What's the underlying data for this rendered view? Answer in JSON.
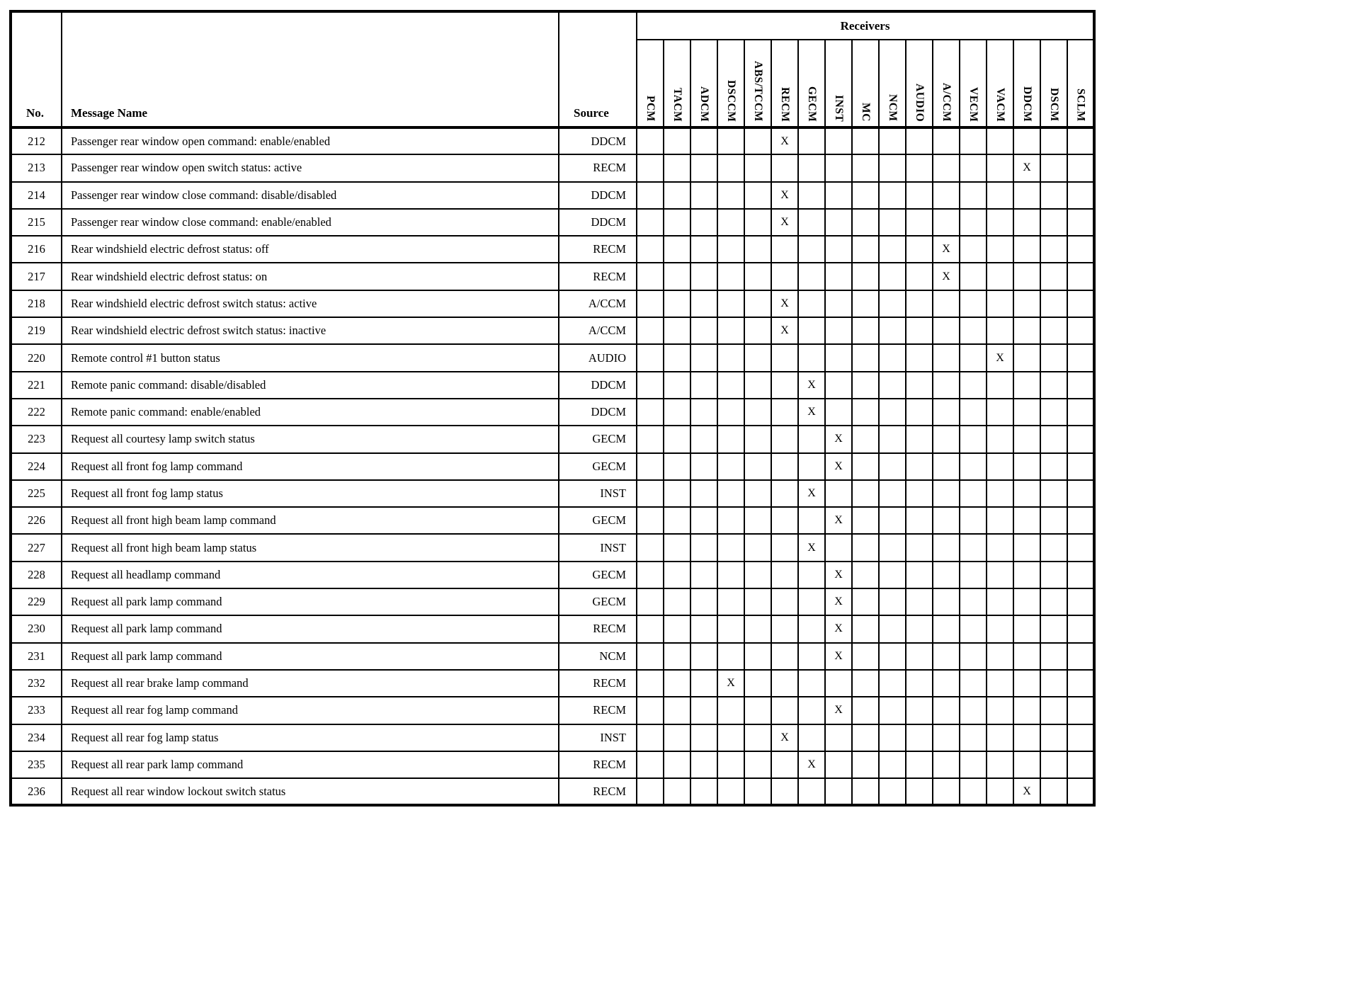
{
  "table": {
    "col_headers": {
      "no": "No.",
      "message_name": "Message Name",
      "source": "Source",
      "receivers_group": "Receivers"
    },
    "receivers": [
      "PCM",
      "TACM",
      "ADCM",
      "DSCCM",
      "ABS/TCCM",
      "RECM",
      "GECM",
      "INST",
      "MC",
      "NCM",
      "AUDIO",
      "A/CCM",
      "VECM",
      "VACM",
      "DDCM",
      "DSCM",
      "SCLM"
    ],
    "mark": "X",
    "rows": [
      {
        "no": "212",
        "message": "Passenger rear window open command: enable/enabled",
        "source": "DDCM",
        "receivers": [
          "RECM"
        ]
      },
      {
        "no": "213",
        "message": "Passenger rear window open switch status: active",
        "source": "RECM",
        "receivers": [
          "DDCM"
        ]
      },
      {
        "no": "214",
        "message": "Passenger rear window close command: disable/disabled",
        "source": "DDCM",
        "receivers": [
          "RECM"
        ]
      },
      {
        "no": "215",
        "message": "Passenger rear window close command: enable/enabled",
        "source": "DDCM",
        "receivers": [
          "RECM"
        ]
      },
      {
        "no": "216",
        "message": "Rear windshield electric defrost status: off",
        "source": "RECM",
        "receivers": [
          "A/CCM"
        ]
      },
      {
        "no": "217",
        "message": "Rear windshield electric defrost status: on",
        "source": "RECM",
        "receivers": [
          "A/CCM"
        ]
      },
      {
        "no": "218",
        "message": "Rear windshield electric defrost switch status: active",
        "source": "A/CCM",
        "receivers": [
          "RECM"
        ]
      },
      {
        "no": "219",
        "message": "Rear windshield electric defrost switch status: inactive",
        "source": "A/CCM",
        "receivers": [
          "RECM"
        ]
      },
      {
        "no": "220",
        "message": "Remote control #1 button status",
        "source": "AUDIO",
        "receivers": [
          "VACM"
        ]
      },
      {
        "no": "221",
        "message": "Remote panic command: disable/disabled",
        "source": "DDCM",
        "receivers": [
          "GECM"
        ]
      },
      {
        "no": "222",
        "message": "Remote panic command: enable/enabled",
        "source": "DDCM",
        "receivers": [
          "GECM"
        ]
      },
      {
        "no": "223",
        "message": "Request all courtesy lamp switch status",
        "source": "GECM",
        "receivers": [
          "INST"
        ]
      },
      {
        "no": "224",
        "message": "Request all front fog lamp command",
        "source": "GECM",
        "receivers": [
          "INST"
        ]
      },
      {
        "no": "225",
        "message": "Request all front fog lamp status",
        "source": "INST",
        "receivers": [
          "GECM"
        ]
      },
      {
        "no": "226",
        "message": "Request all front high beam lamp command",
        "source": "GECM",
        "receivers": [
          "INST"
        ]
      },
      {
        "no": "227",
        "message": "Request all front high beam lamp status",
        "source": "INST",
        "receivers": [
          "GECM"
        ]
      },
      {
        "no": "228",
        "message": "Request all headlamp command",
        "source": "GECM",
        "receivers": [
          "INST"
        ]
      },
      {
        "no": "229",
        "message": "Request all park lamp command",
        "source": "GECM",
        "receivers": [
          "INST"
        ]
      },
      {
        "no": "230",
        "message": "Request all park lamp command",
        "source": "RECM",
        "receivers": [
          "INST"
        ]
      },
      {
        "no": "231",
        "message": "Request all park lamp command",
        "source": "NCM",
        "receivers": [
          "INST"
        ]
      },
      {
        "no": "232",
        "message": "Request all rear brake lamp command",
        "source": "RECM",
        "receivers": [
          "DSCCM"
        ]
      },
      {
        "no": "233",
        "message": "Request all rear fog lamp command",
        "source": "RECM",
        "receivers": [
          "INST"
        ]
      },
      {
        "no": "234",
        "message": "Request all rear fog lamp status",
        "source": "INST",
        "receivers": [
          "RECM"
        ]
      },
      {
        "no": "235",
        "message": "Request all rear park lamp command",
        "source": "RECM",
        "receivers": [
          "GECM"
        ]
      },
      {
        "no": "236",
        "message": "Request all rear window lockout switch status",
        "source": "RECM",
        "receivers": [
          "DDCM"
        ]
      }
    ]
  }
}
